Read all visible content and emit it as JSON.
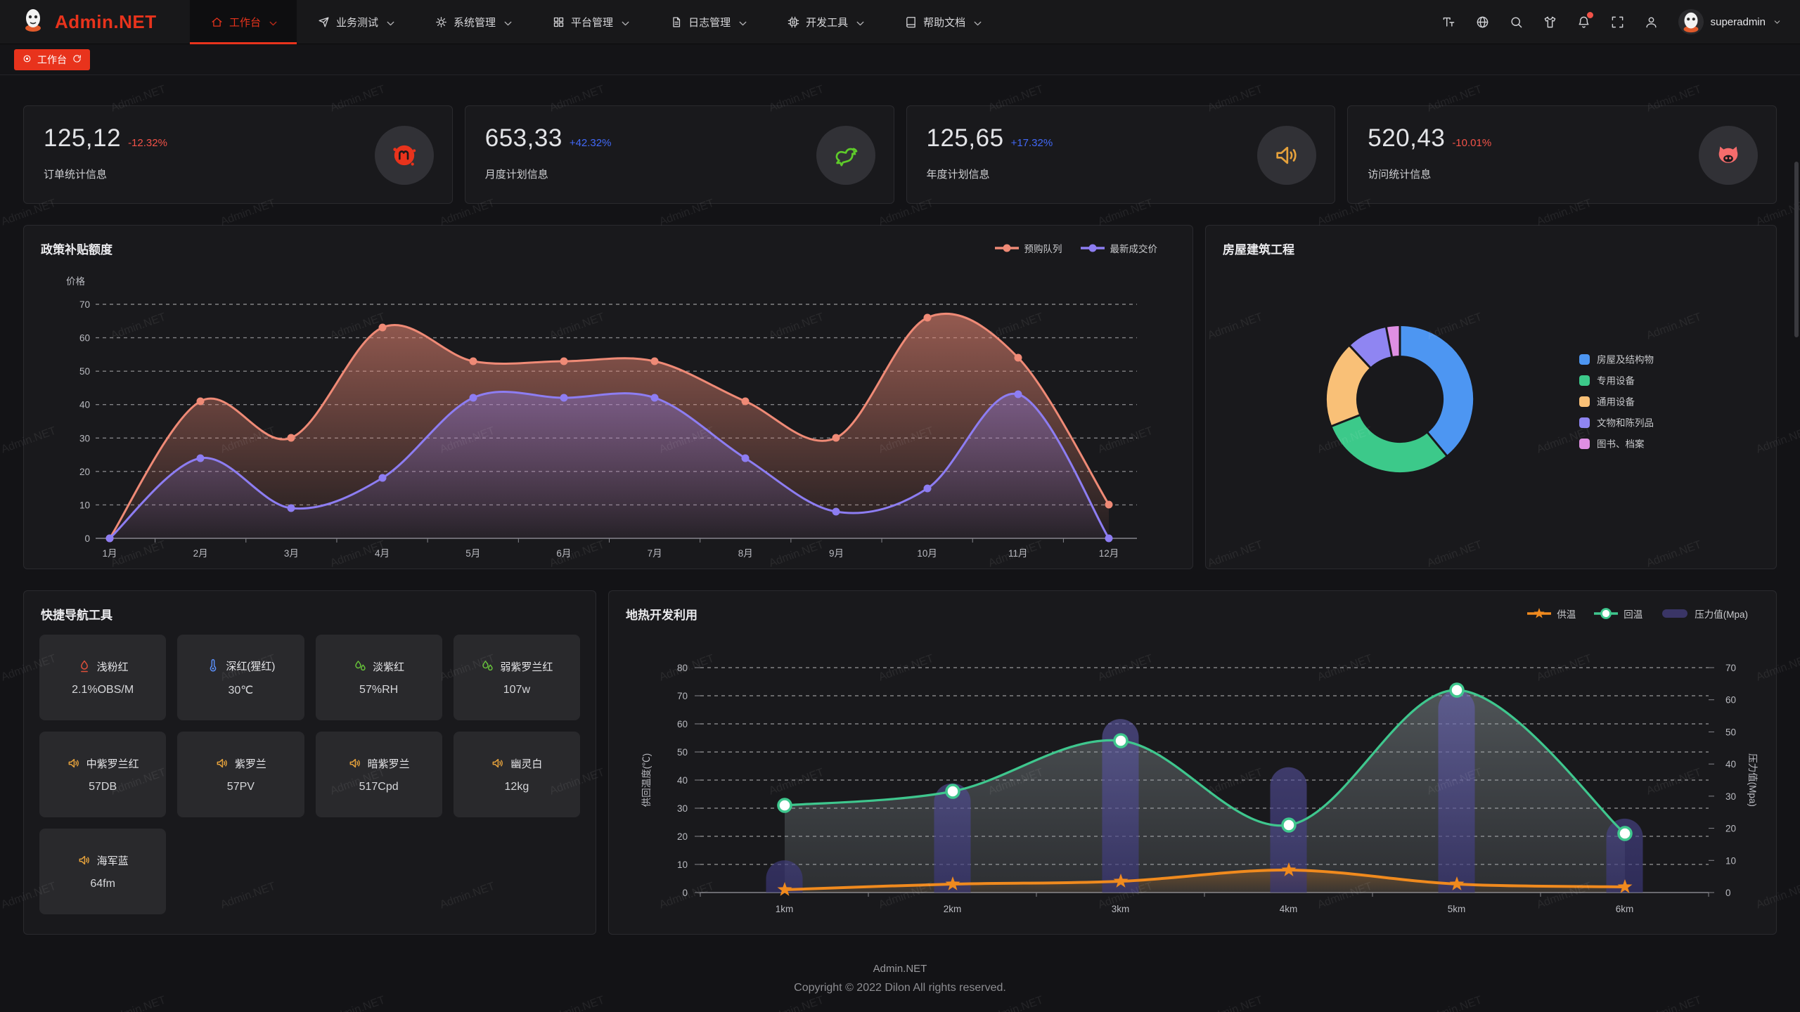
{
  "navbar": {
    "brand": "Admin.NET",
    "menus": [
      {
        "label": "工作台",
        "icon": "home-icon",
        "active": true
      },
      {
        "label": "业务测试",
        "icon": "send-icon",
        "active": false
      },
      {
        "label": "系统管理",
        "icon": "gear-icon",
        "active": false
      },
      {
        "label": "平台管理",
        "icon": "grid-icon",
        "active": false
      },
      {
        "label": "日志管理",
        "icon": "log-icon",
        "active": false
      },
      {
        "label": "开发工具",
        "icon": "cpu-icon",
        "active": false
      },
      {
        "label": "帮助文档",
        "icon": "book-icon",
        "active": false
      }
    ],
    "tools": [
      {
        "icon": "font-size-icon",
        "badge": false
      },
      {
        "icon": "language-icon",
        "badge": false
      },
      {
        "icon": "search-icon",
        "badge": false
      },
      {
        "icon": "theme-icon",
        "badge": false
      },
      {
        "icon": "bell-icon",
        "badge": true
      },
      {
        "icon": "fullscreen-icon",
        "badge": false
      },
      {
        "icon": "profile-icon",
        "badge": false
      }
    ],
    "username": "superadmin"
  },
  "tabbar": {
    "tabs": [
      {
        "label": "工作台",
        "active": true
      }
    ]
  },
  "stat_cards": [
    {
      "value": "125,12",
      "delta": "-12.32%",
      "delta_color": "#f25248",
      "label": "订单统计信息",
      "icon": "splat-icon",
      "icon_color": "#e8331c"
    },
    {
      "value": "653,33",
      "delta": "+42.32%",
      "delta_color": "#4168f6",
      "label": "月度计划信息",
      "icon": "rooster-icon",
      "icon_color": "#5ecb2a"
    },
    {
      "value": "125,65",
      "delta": "+17.32%",
      "delta_color": "#4168f6",
      "label": "年度计划信息",
      "icon": "speaker-icon",
      "icon_color": "#e6a23c"
    },
    {
      "value": "520,43",
      "delta": "-10.01%",
      "delta_color": "#f25248",
      "label": "访问统计信息",
      "icon": "cat-icon",
      "icon_color": "#f56c6c"
    }
  ],
  "chart_data": [
    {
      "type": "line",
      "title": "政策补贴额度",
      "ylabel": "价格",
      "ylim": [
        0,
        70
      ],
      "ystep": 10,
      "grid": "dashed",
      "legend_position": "top-right",
      "x": [
        "1月",
        "2月",
        "3月",
        "4月",
        "5月",
        "6月",
        "7月",
        "8月",
        "9月",
        "10月",
        "11月",
        "12月"
      ],
      "series": [
        {
          "name": "预购队列",
          "color": "#ef8a76",
          "values": [
            0,
            41,
            30,
            63,
            53,
            53,
            53,
            41,
            30,
            66,
            54,
            10
          ]
        },
        {
          "name": "最新成交价",
          "color": "#8d7df2",
          "values": [
            0,
            24,
            9,
            18,
            42,
            42,
            42,
            24,
            8,
            15,
            43,
            0
          ]
        }
      ]
    },
    {
      "type": "pie",
      "title": "房屋建筑工程",
      "legend_position": "right",
      "labels": [
        "房屋及结构物",
        "专用设备",
        "通用设备",
        "文物和陈列品",
        "图书、档案"
      ],
      "values": [
        39,
        30,
        19,
        9,
        3
      ],
      "colors": [
        "#4d96f2",
        "#3cc98a",
        "#f9c077",
        "#8f85f2",
        "#df8fe3"
      ]
    },
    {
      "type": "line+bar",
      "title": "地热开发利用",
      "x": [
        "1km",
        "2km",
        "3km",
        "4km",
        "5km",
        "6km"
      ],
      "left_axis_label": "供回温度(℃)",
      "right_axis_label": "压力值(Mpa)",
      "left_ylim": [
        0,
        80
      ],
      "right_ylim": [
        0,
        70
      ],
      "grid": "dashed",
      "legend_position": "top-right",
      "series": [
        {
          "name": "供温",
          "kind": "line",
          "marker": "star",
          "axis": "left",
          "color": "#f08a1e",
          "values": [
            1,
            3,
            4,
            8,
            3,
            2
          ]
        },
        {
          "name": "回温",
          "kind": "line",
          "marker": "circle",
          "axis": "left",
          "color": "#3fc78e",
          "values": [
            31,
            36,
            54,
            24,
            72,
            21
          ]
        },
        {
          "name": "压力值(Mpa)",
          "kind": "bar",
          "marker": "rect",
          "axis": "right",
          "color": "#534d96",
          "values": [
            10,
            34,
            54,
            39,
            63,
            23
          ]
        }
      ]
    }
  ],
  "panels": {
    "quick_nav": {
      "title": "快捷导航工具",
      "items": [
        {
          "name": "浅粉红",
          "value": "2.1%OBS/M",
          "icon": "fire-icon",
          "color": "#e0503a"
        },
        {
          "name": "深红(猩红)",
          "value": "30℃",
          "icon": "thermometer-icon",
          "color": "#5b8ff9"
        },
        {
          "name": "淡紫红",
          "value": "57%RH",
          "icon": "drops-icon",
          "color": "#67c23a"
        },
        {
          "name": "弱紫罗兰红",
          "value": "107w",
          "icon": "drops-icon",
          "color": "#67c23a"
        },
        {
          "name": "中紫罗兰红",
          "value": "57DB",
          "icon": "speaker-icon",
          "color": "#e6a23c"
        },
        {
          "name": "紫罗兰",
          "value": "57PV",
          "icon": "speaker-icon",
          "color": "#e6a23c"
        },
        {
          "name": "暗紫罗兰",
          "value": "517Cpd",
          "icon": "speaker-icon",
          "color": "#e6a23c"
        },
        {
          "name": "幽灵白",
          "value": "12kg",
          "icon": "speaker-icon",
          "color": "#e6a23c"
        },
        {
          "name": "海军蓝",
          "value": "64fm",
          "icon": "speaker-icon",
          "color": "#e6a23c"
        }
      ]
    }
  },
  "footer": {
    "line1": "Admin.NET",
    "line2": "Copyright © 2022 Dilon All rights reserved."
  },
  "watermark": {
    "text": "Admin.NET"
  },
  "theme": {
    "accent": "#e8331c",
    "page_bg": "#131316",
    "panel_bg": "#19191c",
    "grid_line": "#d8d8dc"
  }
}
